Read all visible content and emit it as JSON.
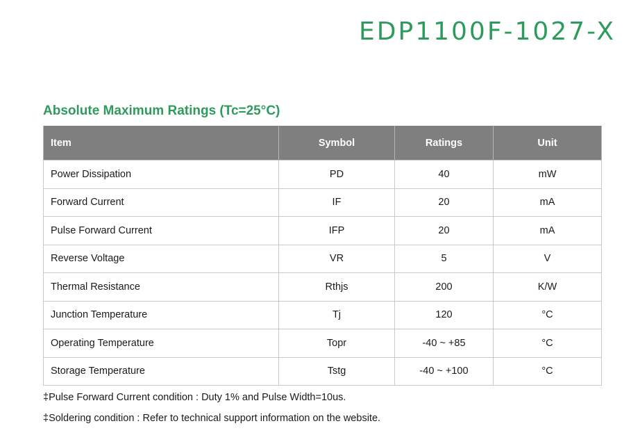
{
  "header": {
    "part_number": "EDP1100F-1027-X"
  },
  "section": {
    "title": "Absolute Maximum Ratings (Tc=25°C)"
  },
  "table": {
    "columns": [
      "Item",
      "Symbol",
      "Ratings",
      "Unit"
    ],
    "rows": [
      {
        "item": "Power Dissipation",
        "symbol": "PD",
        "ratings": "40",
        "unit": "mW"
      },
      {
        "item": "Forward Current",
        "symbol": "IF",
        "ratings": "20",
        "unit": "mA"
      },
      {
        "item": "Pulse Forward Current",
        "symbol": "IFP",
        "ratings": "20",
        "unit": "mA"
      },
      {
        "item": "Reverse Voltage",
        "symbol": "VR",
        "ratings": "5",
        "unit": "V"
      },
      {
        "item": "Thermal Resistance",
        "symbol": "Rthjs",
        "ratings": "200",
        "unit": "K/W"
      },
      {
        "item": "Junction Temperature",
        "symbol": "Tj",
        "ratings": "120",
        "unit": "°C"
      },
      {
        "item": "Operating Temperature",
        "symbol": "Topr",
        "ratings": "-40 ~ +85",
        "unit": "°C"
      },
      {
        "item": "Storage Temperature",
        "symbol": "Tstg",
        "ratings": "-40 ~ +100",
        "unit": "°C"
      }
    ]
  },
  "notes": [
    "‡Pulse Forward Current condition : Duty 1% and Pulse Width=10us.",
    "‡Soldering condition : Refer to technical support information on the website."
  ],
  "colors": {
    "accent_green": "#2f9a5e",
    "header_gray": "#7f7f7f",
    "grid_line": "#c9c9c9"
  }
}
